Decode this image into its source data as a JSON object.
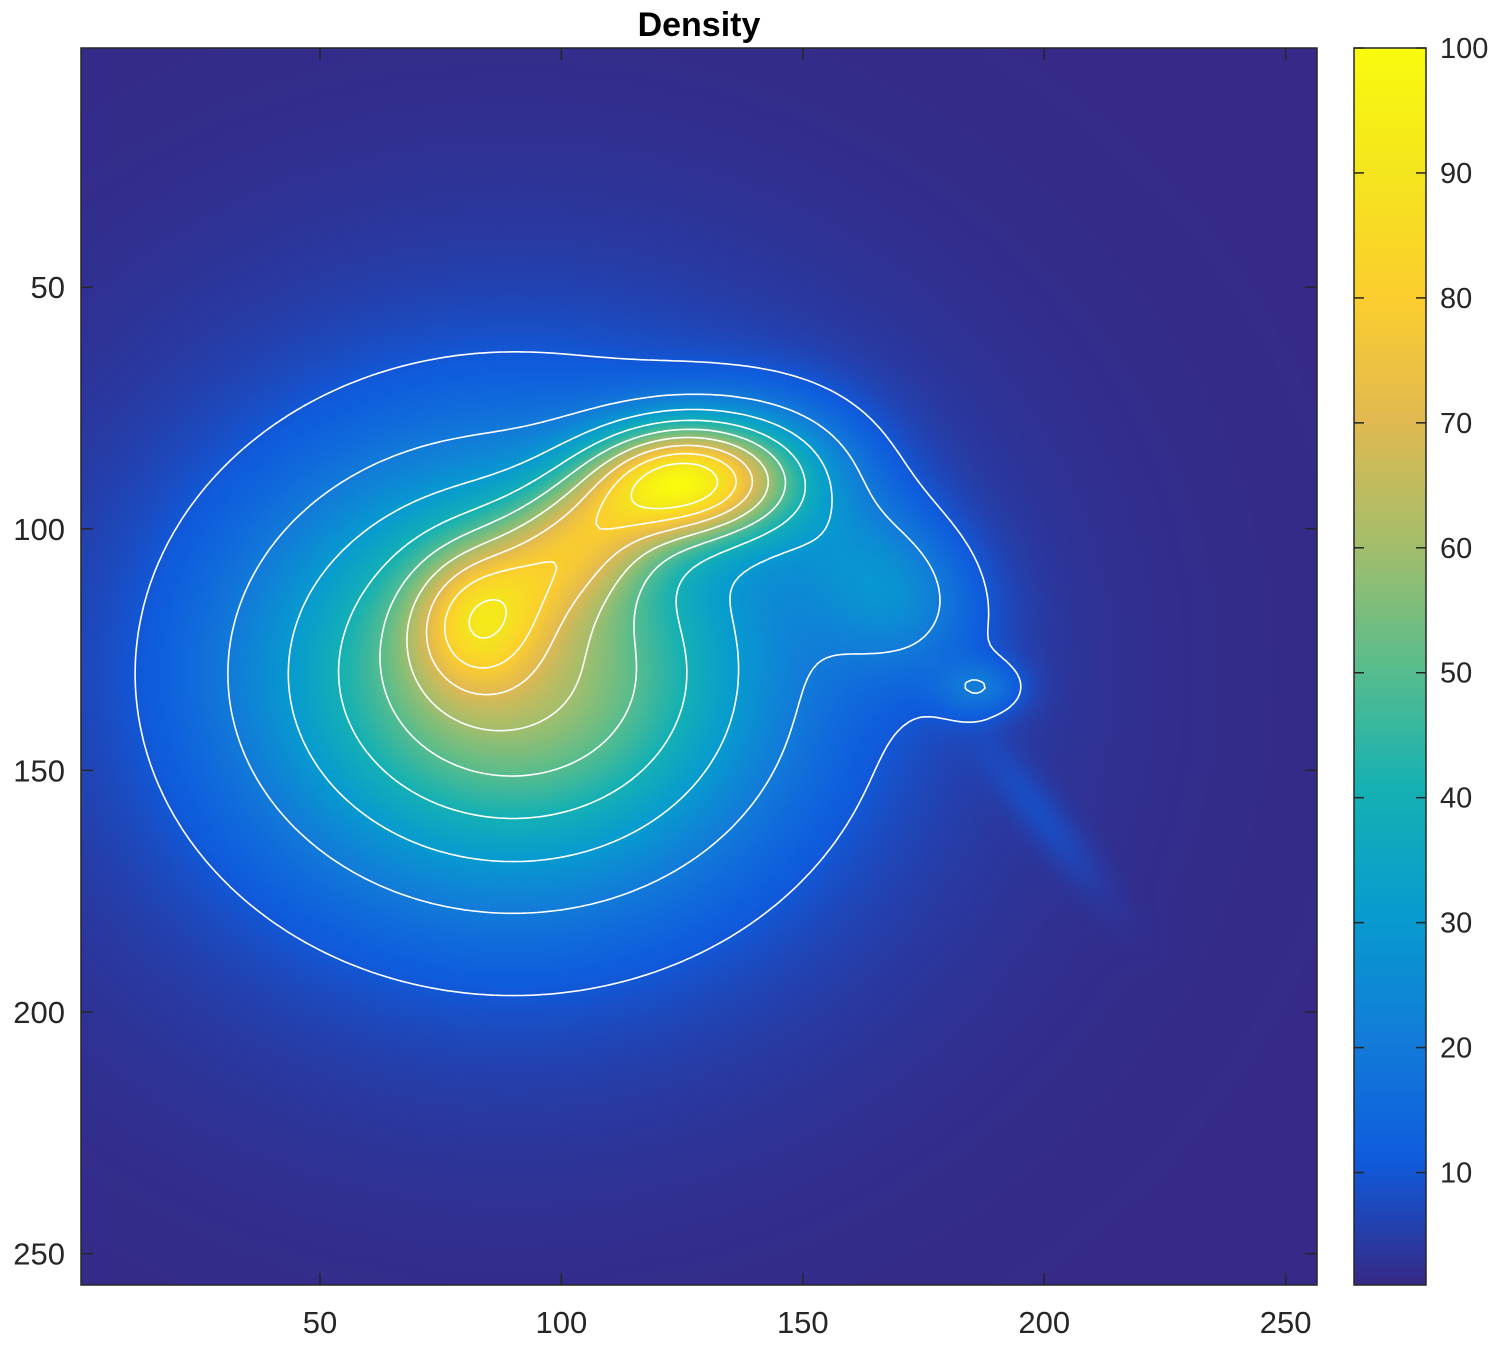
{
  "chart_data": {
    "type": "heatmap",
    "title": "Density",
    "xlabel": "",
    "ylabel": "",
    "xlim": [
      0.5,
      256.5
    ],
    "ylim": [
      0.5,
      256.5
    ],
    "y_axis_direction": "reversed",
    "x_ticks": [
      {
        "value": 50,
        "label": "50"
      },
      {
        "value": 100,
        "label": "100"
      },
      {
        "value": 150,
        "label": "150"
      },
      {
        "value": 200,
        "label": "200"
      },
      {
        "value": 250,
        "label": "250"
      }
    ],
    "y_ticks": [
      {
        "value": 50,
        "label": "50"
      },
      {
        "value": 100,
        "label": "100"
      },
      {
        "value": 150,
        "label": "150"
      },
      {
        "value": 200,
        "label": "200"
      },
      {
        "value": 250,
        "label": "250"
      }
    ],
    "colorbar": {
      "colormap": "parula",
      "range": [
        1,
        100
      ],
      "ticks": [
        {
          "value": 10,
          "label": "10"
        },
        {
          "value": 20,
          "label": "20"
        },
        {
          "value": 30,
          "label": "30"
        },
        {
          "value": 40,
          "label": "40"
        },
        {
          "value": 50,
          "label": "50"
        },
        {
          "value": 60,
          "label": "60"
        },
        {
          "value": 70,
          "label": "70"
        },
        {
          "value": 80,
          "label": "80"
        },
        {
          "value": 90,
          "label": "90"
        },
        {
          "value": 100,
          "label": "100"
        }
      ]
    },
    "contour_color": "#ffffff",
    "contour_levels": [
      10,
      20,
      30,
      40,
      50,
      60,
      70,
      80,
      90
    ],
    "density_field": {
      "background": 1,
      "components": [
        {
          "cx": 127,
          "cy": 90,
          "sx": 13,
          "sy": 8,
          "amp": 52
        },
        {
          "cx": 105,
          "cy": 101,
          "sx": 17,
          "sy": 9,
          "amp": 30,
          "rot": -35
        },
        {
          "cx": 82,
          "cy": 119,
          "sx": 9,
          "sy": 10,
          "amp": 22
        },
        {
          "cx": 90,
          "cy": 130,
          "sx": 34,
          "sy": 28,
          "amp": 40
        },
        {
          "cx": 145,
          "cy": 88,
          "sx": 14,
          "sy": 11,
          "amp": 14
        },
        {
          "cx": 168,
          "cy": 112,
          "sx": 14,
          "sy": 11,
          "amp": 16,
          "rot": 40
        },
        {
          "cx": 187,
          "cy": 133,
          "sx": 6,
          "sy": 4,
          "amp": 11
        },
        {
          "cx": 200,
          "cy": 160,
          "sx": 14,
          "sy": 3.2,
          "amp": 4.2,
          "rot": 52
        },
        {
          "cx": 90,
          "cy": 130,
          "sx": 56,
          "sy": 50,
          "amp": 13
        }
      ]
    }
  },
  "colors": {
    "axis": "#262626",
    "background": "#ffffff"
  }
}
